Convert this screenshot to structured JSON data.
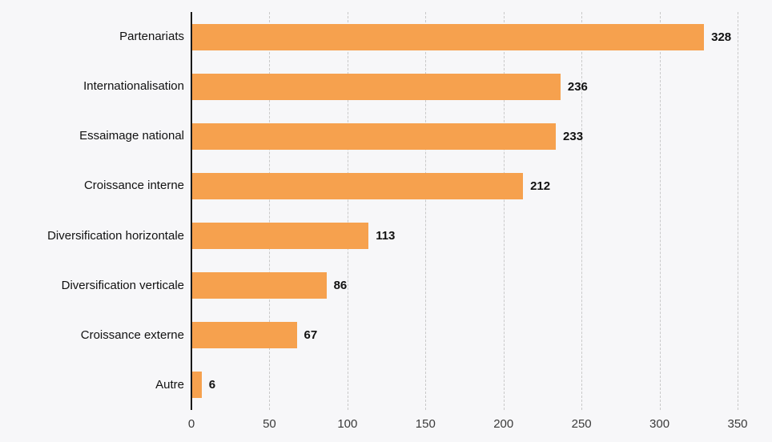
{
  "chart_data": {
    "type": "bar",
    "orientation": "horizontal",
    "title": "",
    "xlabel": "",
    "ylabel": "",
    "categories": [
      "Partenariats",
      "Internationalisation",
      "Essaimage national",
      "Croissance interne",
      "Diversification horizontale",
      "Diversification verticale",
      "Croissance externe",
      "Autre"
    ],
    "values": [
      328,
      236,
      233,
      212,
      113,
      86,
      67,
      6
    ],
    "value_labels": [
      "328",
      "236",
      "233",
      "212",
      "113",
      "86",
      "67",
      "6"
    ],
    "xlim": [
      0,
      350
    ],
    "x_ticks": [
      0,
      50,
      100,
      150,
      200,
      250,
      300,
      350
    ],
    "grid": "vertical-dashed",
    "legend": "none",
    "colors": {
      "bar": "#F6A14E",
      "background": "#F7F7F9",
      "gridline": "#C9C9C9",
      "axis_line": "#1A1A1A",
      "category_label": "#111111",
      "value_label": "#111111",
      "tick_label": "#3A3A3A"
    }
  }
}
